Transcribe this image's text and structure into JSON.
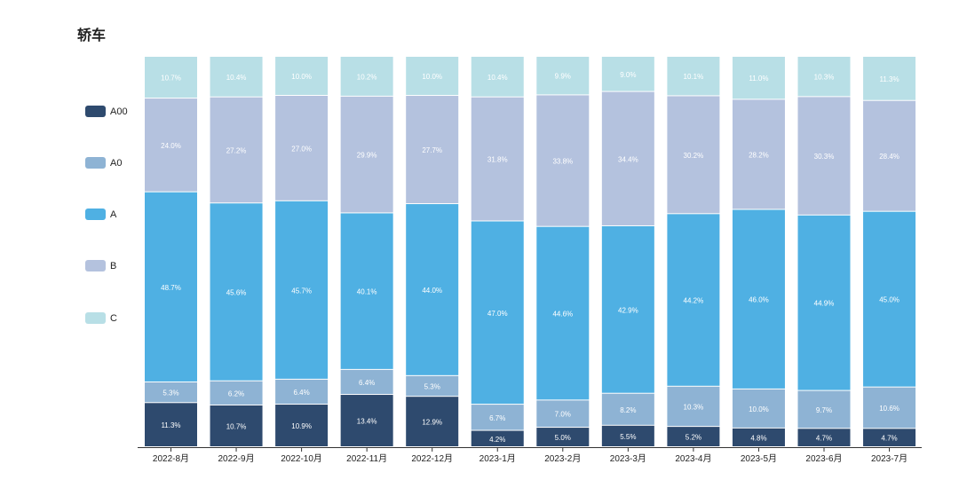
{
  "chart_data": {
    "type": "bar",
    "stacked": true,
    "title": "轿车",
    "xlabel": "",
    "ylabel": "",
    "legend_position": "left",
    "categories": [
      "2022-8月",
      "2022-9月",
      "2022-10月",
      "2022-11月",
      "2022-12月",
      "2023-1月",
      "2023-2月",
      "2023-3月",
      "2023-4月",
      "2023-5月",
      "2023-6月",
      "2023-7月"
    ],
    "series": [
      {
        "name": "A00",
        "color": "#2e4a6e",
        "values": [
          11.3,
          10.7,
          10.9,
          13.4,
          12.9,
          4.2,
          5.0,
          5.5,
          5.2,
          4.8,
          4.7,
          4.7
        ]
      },
      {
        "name": "A0",
        "color": "#8eb3d4",
        "values": [
          5.3,
          6.2,
          6.4,
          6.4,
          5.3,
          6.7,
          7.0,
          8.2,
          10.3,
          10.0,
          9.7,
          10.6
        ]
      },
      {
        "name": "A",
        "color": "#4fb0e3",
        "values": [
          48.7,
          45.6,
          45.7,
          40.1,
          44.0,
          47.0,
          44.6,
          42.9,
          44.2,
          46.0,
          44.9,
          45.0
        ]
      },
      {
        "name": "B",
        "color": "#b4c2de",
        "values": [
          24.0,
          27.2,
          27.0,
          29.9,
          27.7,
          31.8,
          33.8,
          34.4,
          30.2,
          28.2,
          30.3,
          28.4
        ]
      },
      {
        "name": "C",
        "color": "#b8dfe6",
        "values": [
          10.7,
          10.4,
          10.0,
          10.2,
          10.0,
          10.4,
          9.9,
          9.0,
          10.1,
          11.0,
          10.3,
          11.3
        ]
      }
    ]
  }
}
